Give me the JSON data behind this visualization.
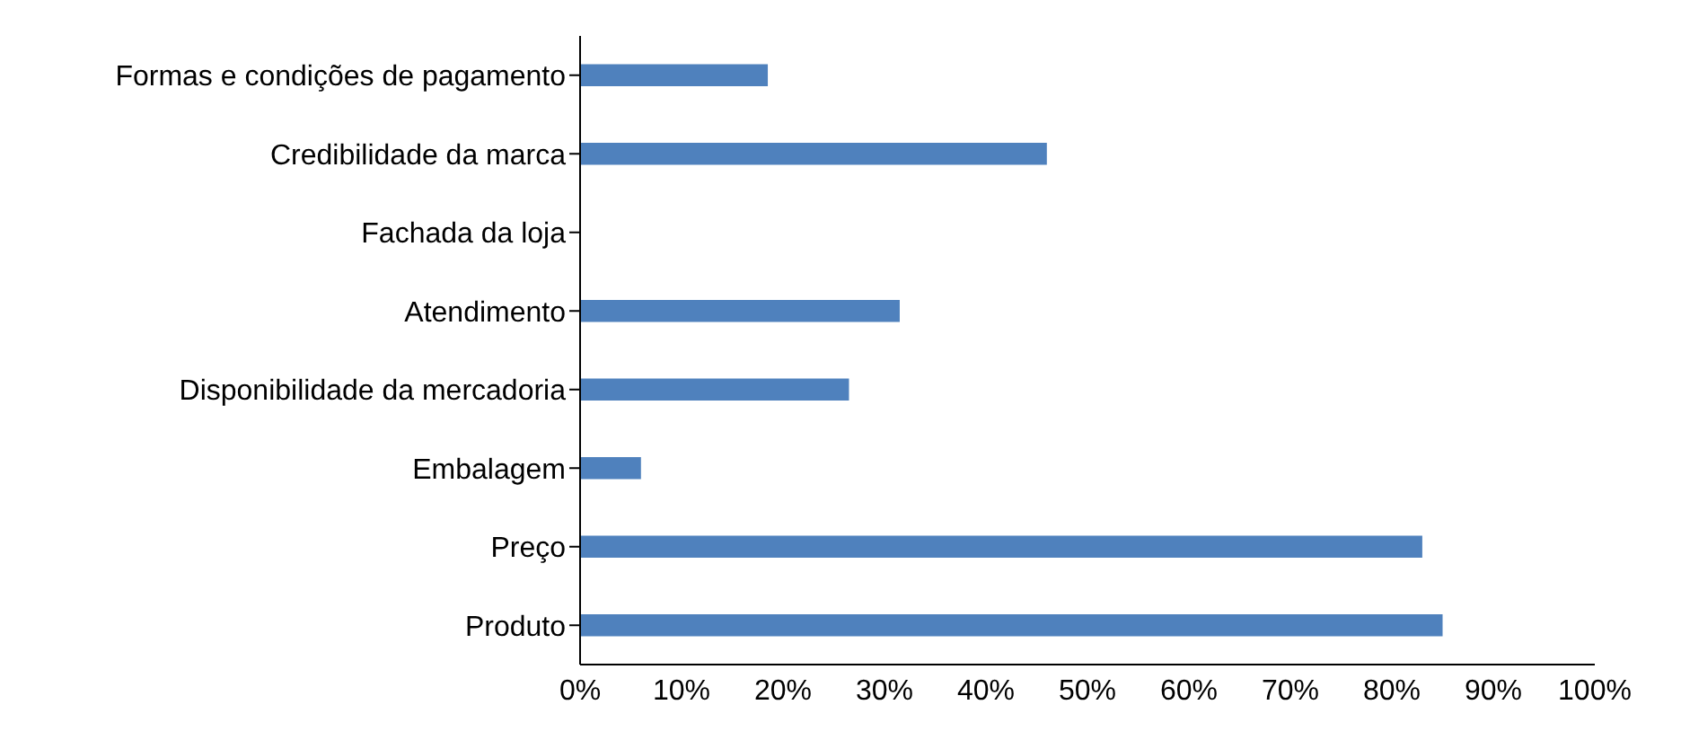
{
  "chart_data": {
    "type": "bar",
    "orientation": "horizontal",
    "categories": [
      "Formas e condições de pagamento",
      "Credibilidade da marca",
      "Fachada da loja",
      "Atendimento",
      "Disponibilidade da mercadoria",
      "Embalagem",
      "Preço",
      "Produto"
    ],
    "values": [
      18.5,
      46,
      0,
      31.5,
      26.5,
      6,
      83,
      85
    ],
    "color": "#4f81bd",
    "xlim": [
      0,
      100
    ],
    "xticks": [
      {
        "value": 0,
        "label": "0%"
      },
      {
        "value": 10,
        "label": "10%"
      },
      {
        "value": 20,
        "label": "20%"
      },
      {
        "value": 30,
        "label": "30%"
      },
      {
        "value": 40,
        "label": "40%"
      },
      {
        "value": 50,
        "label": "50%"
      },
      {
        "value": 60,
        "label": "60%"
      },
      {
        "value": 70,
        "label": "70%"
      },
      {
        "value": 80,
        "label": "80%"
      },
      {
        "value": 90,
        "label": "90%"
      },
      {
        "value": 100,
        "label": "100%"
      }
    ],
    "grid": false,
    "legend": false
  }
}
